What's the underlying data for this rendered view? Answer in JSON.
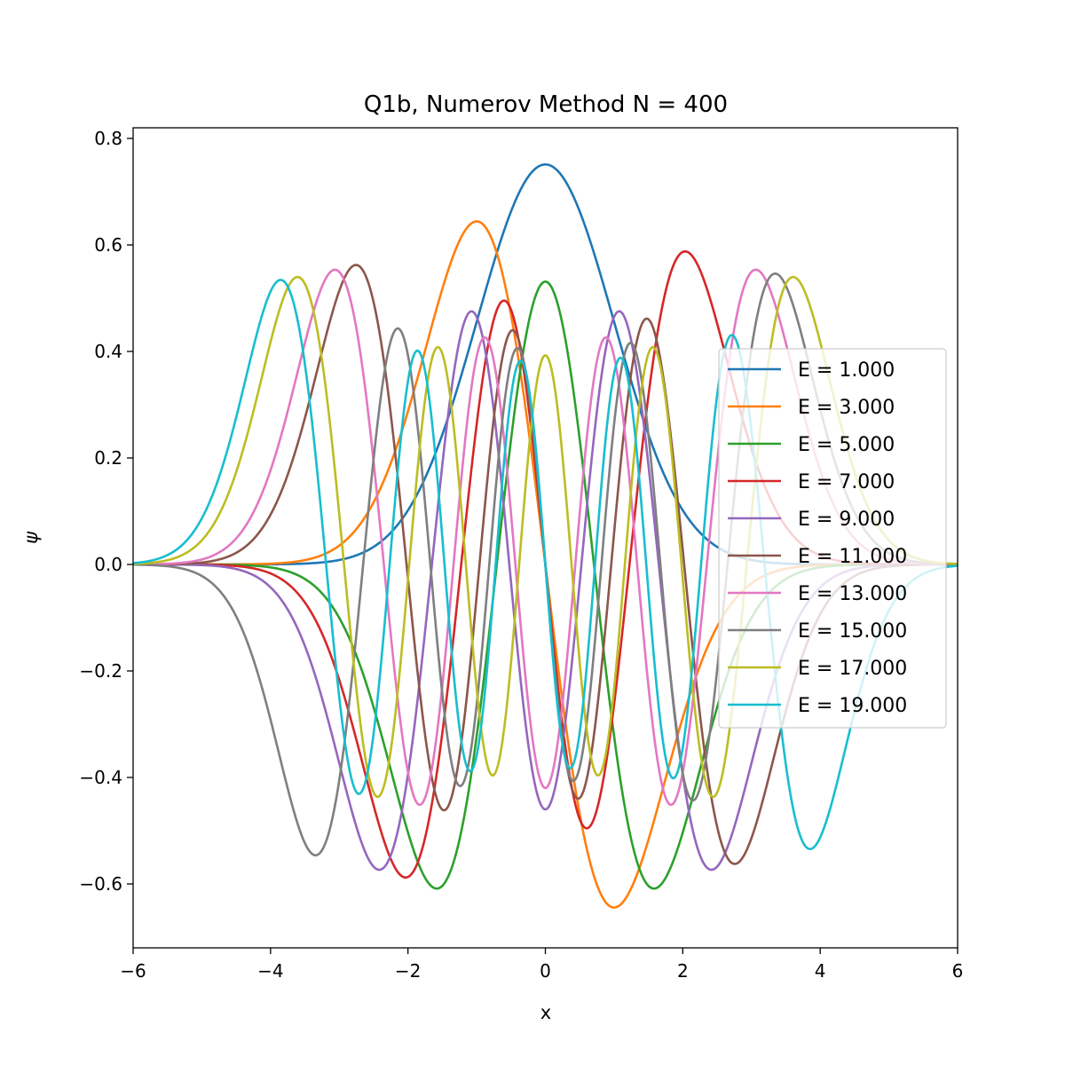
{
  "chart_data": {
    "type": "line",
    "title": "Q1b, Numerov Method N = 400",
    "xlabel": "x",
    "ylabel": "ψ",
    "xlim": [
      -6,
      6
    ],
    "ylim": [
      -0.72,
      0.82
    ],
    "xticks": [
      -6,
      -4,
      -2,
      0,
      2,
      4,
      6
    ],
    "xtick_labels": [
      "−6",
      "−4",
      "−2",
      "0",
      "2",
      "4",
      "6"
    ],
    "yticks": [
      -0.6,
      -0.4,
      -0.2,
      0.0,
      0.2,
      0.4,
      0.6,
      0.8
    ],
    "ytick_labels": [
      "−0.6",
      "−0.4",
      "−0.2",
      "0.0",
      "0.2",
      "0.4",
      "0.6",
      "0.8"
    ],
    "legend_position": "center-right",
    "grid": false,
    "series": [
      {
        "name": "E = 1.000",
        "n": 0,
        "sign": 1,
        "color": "#1f77b4"
      },
      {
        "name": "E = 3.000",
        "n": 1,
        "sign": -1,
        "color": "#ff7f0e"
      },
      {
        "name": "E = 5.000",
        "n": 2,
        "sign": -1,
        "color": "#2ca02c"
      },
      {
        "name": "E = 7.000",
        "n": 3,
        "sign": 1,
        "color": "#d62728"
      },
      {
        "name": "E = 9.000",
        "n": 4,
        "sign": -1,
        "color": "#9467bd"
      },
      {
        "name": "E = 11.000",
        "n": 5,
        "sign": -1,
        "color": "#8c564b"
      },
      {
        "name": "E = 13.000",
        "n": 6,
        "sign": 1,
        "color": "#e377c2"
      },
      {
        "name": "E = 15.000",
        "n": 7,
        "sign": 1,
        "color": "#7f7f7f"
      },
      {
        "name": "E = 17.000",
        "n": 8,
        "sign": 1,
        "color": "#bcbd22"
      },
      {
        "name": "E = 19.000",
        "n": 9,
        "sign": -1,
        "color": "#17becf"
      }
    ]
  }
}
